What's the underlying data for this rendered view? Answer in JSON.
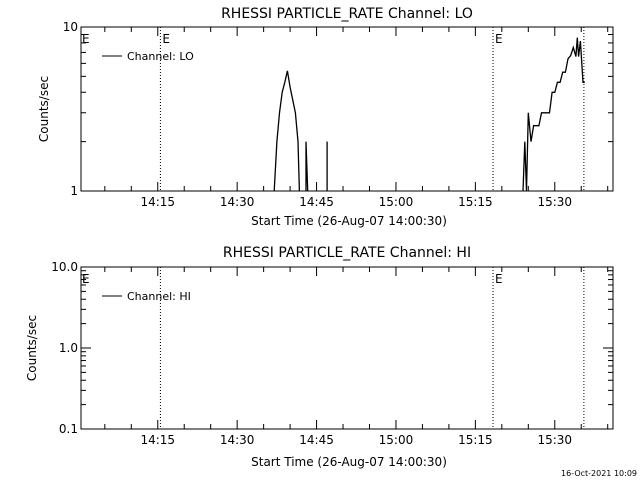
{
  "chart_data": [
    {
      "type": "line",
      "title": "RHESSI PARTICLE_RATE Channel: LO",
      "xlabel": "Start Time (26-Aug-07 14:00:30)",
      "ylabel": "Counts/sec",
      "yscale": "log",
      "ylim": [
        1,
        10
      ],
      "ytick_labels": [
        "1",
        "10"
      ],
      "xlim": [
        "14:00:30",
        "15:41:00"
      ],
      "xtick_labels": [
        "14:15",
        "14:30",
        "14:45",
        "15:00",
        "15:15",
        "15:30"
      ],
      "grid": false,
      "legend": "top-left",
      "markers": [
        {
          "time": "14:15:30",
          "label": "E",
          "line": "dotted"
        },
        {
          "time": "15:18:20",
          "label": "E",
          "line": "dotted"
        },
        {
          "time": "15:35:30",
          "label": "",
          "line": "dotted"
        }
      ],
      "edge_marker": "E",
      "series": [
        {
          "name": "Channel: LO",
          "segments": [
            [
              [
                "14:37:00",
                1.0
              ],
              [
                "14:37:30",
                2.0
              ],
              [
                "14:38:00",
                3.0
              ],
              [
                "14:38:30",
                4.0
              ],
              [
                "14:39:00",
                4.6
              ],
              [
                "14:39:30",
                5.4
              ],
              [
                "14:40:00",
                4.3
              ],
              [
                "14:40:30",
                3.6
              ],
              [
                "14:41:00",
                3.0
              ],
              [
                "14:41:30",
                2.0
              ],
              [
                "14:41:45",
                1.0
              ]
            ],
            [
              [
                "14:43:00",
                1.0
              ],
              [
                "14:43:00",
                2.0
              ],
              [
                "14:43:20",
                1.0
              ]
            ],
            [
              [
                "14:47:00",
                1.0
              ],
              [
                "14:47:00",
                2.0
              ]
            ],
            [
              [
                "15:24:00",
                1.0
              ],
              [
                "15:24:20",
                2.0
              ],
              [
                "15:24:40",
                1.0
              ],
              [
                "15:25:00",
                3.0
              ],
              [
                "15:25:30",
                2.0
              ],
              [
                "15:26:00",
                2.5
              ],
              [
                "15:27:00",
                2.5
              ],
              [
                "15:27:30",
                3.0
              ],
              [
                "15:29:00",
                3.0
              ],
              [
                "15:29:30",
                4.0
              ],
              [
                "15:30:00",
                4.0
              ],
              [
                "15:30:30",
                4.6
              ],
              [
                "15:31:00",
                4.6
              ],
              [
                "15:31:30",
                5.3
              ],
              [
                "15:32:00",
                5.3
              ],
              [
                "15:32:30",
                6.4
              ],
              [
                "15:33:00",
                6.7
              ],
              [
                "15:33:30",
                7.5
              ],
              [
                "15:34:00",
                6.6
              ],
              [
                "15:34:15",
                8.6
              ],
              [
                "15:34:30",
                6.6
              ],
              [
                "15:34:50",
                8.2
              ],
              [
                "15:35:20",
                4.6
              ],
              [
                "15:35:40",
                4.6
              ]
            ]
          ]
        }
      ]
    },
    {
      "type": "line",
      "title": "RHESSI PARTICLE_RATE Channel: HI",
      "xlabel": "Start Time (26-Aug-07 14:00:30)",
      "ylabel": "Counts/sec",
      "yscale": "log",
      "ylim": [
        0.1,
        10
      ],
      "ytick_labels": [
        "0.1",
        "1.0",
        "10.0"
      ],
      "xlim": [
        "14:00:30",
        "15:41:00"
      ],
      "xtick_labels": [
        "14:15",
        "14:30",
        "14:45",
        "15:00",
        "15:15",
        "15:30"
      ],
      "grid": false,
      "legend": "top-left",
      "markers": [
        {
          "time": "14:15:30",
          "label": "",
          "line": "dotted"
        },
        {
          "time": "15:18:20",
          "label": "E",
          "line": "dotted"
        },
        {
          "time": "15:35:30",
          "label": "",
          "line": "dotted"
        }
      ],
      "edge_marker": "E",
      "series": [
        {
          "name": "Channel: HI",
          "segments": []
        }
      ]
    }
  ],
  "footer": {
    "timestamp": "16-Oct-2021 10:09"
  }
}
